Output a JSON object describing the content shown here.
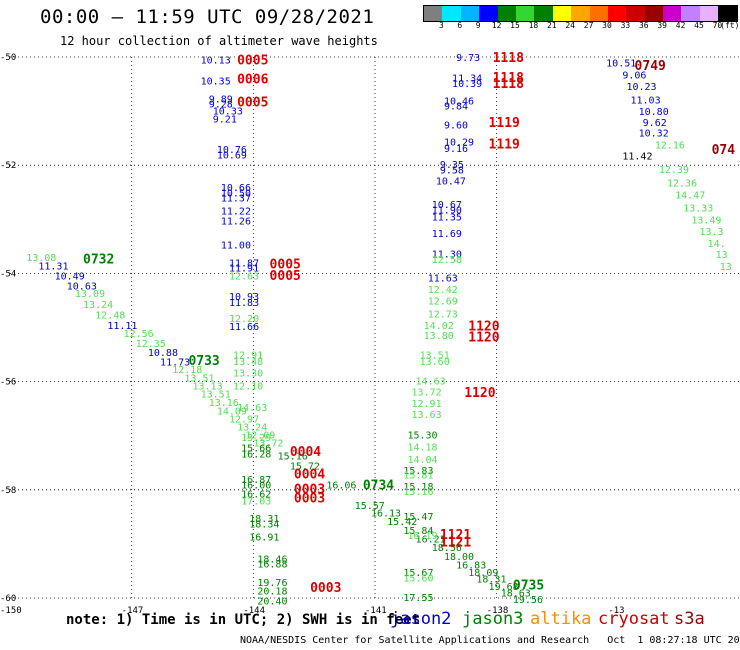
{
  "title": "00:00 – 11:59 UTC 09/28/2021",
  "subtitle": "12 hour collection of altimeter wave heights",
  "colorbar": {
    "colors": [
      "#7f7f7f",
      "#00e8ff",
      "#00b4ff",
      "#0000ff",
      "#008000",
      "#33d633",
      "#008000",
      "#ffff00",
      "#ffa500",
      "#ff6e00",
      "#ff0000",
      "#cc0000",
      "#990000",
      "#cc00cc",
      "#c080ff",
      "#e8b0ff",
      "#000000"
    ],
    "ticks": [
      "3",
      "6",
      "9",
      "12",
      "15",
      "18",
      "21",
      "24",
      "27",
      "30",
      "33",
      "36",
      "39",
      "42",
      "45",
      "70",
      "(ft)"
    ]
  },
  "map": {
    "lat_labels": [
      "-50",
      "-52",
      "-54",
      "-56",
      "-58",
      "-60"
    ],
    "lon_labels": [
      "-150",
      "-147",
      "-144",
      "-141",
      "-138",
      "-13"
    ]
  },
  "note": "note: 1) Time is in UTC; 2) SWH is in feet",
  "missions": [
    {
      "name": "jason2",
      "color": "#0000cc"
    },
    {
      "name": "jason3",
      "color": "#008000"
    },
    {
      "name": "altika",
      "color": "#ff8c00"
    },
    {
      "name": "cryosat",
      "color": "#cc0000"
    },
    {
      "name": "s3a",
      "color": "#990000"
    }
  ],
  "footer": "NOAA/NESDIS Center for Satellite Applications and Research   Oct  1 08:27:18 UTC 2021",
  "chart_data": {
    "type": "scatter",
    "x_axis": "longitude",
    "y_axis": "latitude",
    "xlim": [
      -150,
      -132
    ],
    "ylim": [
      -60.2,
      -49.9
    ],
    "time_labels": [
      {
        "text": "0732",
        "lon": -148.2,
        "lat": -53.72,
        "color": "#008000"
      },
      {
        "text": "0733",
        "lon": -145.6,
        "lat": -55.6,
        "color": "#008000"
      },
      {
        "text": "0734",
        "lon": -141.3,
        "lat": -57.9,
        "color": "#008000"
      },
      {
        "text": "0735",
        "lon": -137.6,
        "lat": -59.75,
        "color": "#008000"
      },
      {
        "text": "0005",
        "lon": -144.4,
        "lat": -50.05,
        "color": "#dd0000"
      },
      {
        "text": "0006",
        "lon": -144.4,
        "lat": -50.4,
        "color": "#dd0000"
      },
      {
        "text": "0005",
        "lon": -144.4,
        "lat": -50.82,
        "color": "#dd0000"
      },
      {
        "text": "0005",
        "lon": -143.6,
        "lat": -53.82,
        "color": "#dd0000"
      },
      {
        "text": "0005",
        "lon": -143.6,
        "lat": -54.03,
        "color": "#dd0000"
      },
      {
        "text": "0004",
        "lon": -143.1,
        "lat": -57.28,
        "color": "#dd0000"
      },
      {
        "text": "0004",
        "lon": -143.0,
        "lat": -57.7,
        "color": "#dd0000"
      },
      {
        "text": "0003",
        "lon": -143.0,
        "lat": -57.98,
        "color": "#dd0000"
      },
      {
        "text": "0003",
        "lon": -143.0,
        "lat": -58.14,
        "color": "#dd0000"
      },
      {
        "text": "0003",
        "lon": -142.6,
        "lat": -59.8,
        "color": "#dd0000"
      },
      {
        "text": "1118",
        "lon": -138.1,
        "lat": -50.0,
        "color": "#dd0000"
      },
      {
        "text": "1118",
        "lon": -138.1,
        "lat": -50.37,
        "color": "#dd0000"
      },
      {
        "text": "1118",
        "lon": -138.1,
        "lat": -50.48,
        "color": "#dd0000"
      },
      {
        "text": "1119",
        "lon": -138.2,
        "lat": -51.2,
        "color": "#dd0000"
      },
      {
        "text": "1119",
        "lon": -138.2,
        "lat": -51.6,
        "color": "#dd0000"
      },
      {
        "text": "1120",
        "lon": -138.7,
        "lat": -54.96,
        "color": "#dd0000"
      },
      {
        "text": "1120",
        "lon": -138.7,
        "lat": -55.17,
        "color": "#dd0000"
      },
      {
        "text": "1120",
        "lon": -138.8,
        "lat": -56.19,
        "color": "#dd0000"
      },
      {
        "text": "1121",
        "lon": -139.4,
        "lat": -58.82,
        "color": "#dd0000"
      },
      {
        "text": "1121",
        "lon": -139.4,
        "lat": -58.96,
        "color": "#dd0000"
      },
      {
        "text": "0749",
        "lon": -134.6,
        "lat": -50.15,
        "color": "#990000"
      },
      {
        "text": "074",
        "lon": -132.7,
        "lat": -51.7,
        "color": "#990000"
      }
    ],
    "values": [
      {
        "v": "13.08",
        "lon": -149.6,
        "lat": -53.7,
        "c": "#55dd55"
      },
      {
        "v": "11.31",
        "lon": -149.3,
        "lat": -53.85,
        "c": "#0000cc"
      },
      {
        "v": "10.49",
        "lon": -148.9,
        "lat": -54.04,
        "c": "#0000cc"
      },
      {
        "v": "10.63",
        "lon": -148.6,
        "lat": -54.22,
        "c": "#0000cc"
      },
      {
        "v": "13.09",
        "lon": -148.4,
        "lat": -54.36,
        "c": "#55dd55"
      },
      {
        "v": "13.24",
        "lon": -148.2,
        "lat": -54.57,
        "c": "#55dd55"
      },
      {
        "v": "12.48",
        "lon": -147.9,
        "lat": -54.76,
        "c": "#55dd55"
      },
      {
        "v": "11.11",
        "lon": -147.6,
        "lat": -54.95,
        "c": "#0000cc"
      },
      {
        "v": "12.56",
        "lon": -147.2,
        "lat": -55.1,
        "c": "#55dd55"
      },
      {
        "v": "12.35",
        "lon": -146.9,
        "lat": -55.29,
        "c": "#55dd55"
      },
      {
        "v": "10.88",
        "lon": -146.6,
        "lat": -55.45,
        "c": "#0000cc"
      },
      {
        "v": "11.73",
        "lon": -146.3,
        "lat": -55.63,
        "c": "#0000cc"
      },
      {
        "v": "12.18",
        "lon": -146.0,
        "lat": -55.77,
        "c": "#55dd55"
      },
      {
        "v": "13.51",
        "lon": -145.7,
        "lat": -55.92,
        "c": "#55dd55"
      },
      {
        "v": "13.13",
        "lon": -145.5,
        "lat": -56.07,
        "c": "#55dd55"
      },
      {
        "v": "13.51",
        "lon": -145.3,
        "lat": -56.22,
        "c": "#55dd55"
      },
      {
        "v": "13.16",
        "lon": -145.1,
        "lat": -56.38,
        "c": "#55dd55"
      },
      {
        "v": "14.09",
        "lon": -144.9,
        "lat": -56.53,
        "c": "#55dd55"
      },
      {
        "v": "12.97",
        "lon": -144.6,
        "lat": -56.68,
        "c": "#55dd55"
      },
      {
        "v": "13.24",
        "lon": -144.4,
        "lat": -56.83,
        "c": "#55dd55"
      },
      {
        "v": "12.09",
        "lon": -144.2,
        "lat": -56.98,
        "c": "#55dd55"
      },
      {
        "v": "13.72",
        "lon": -144.0,
        "lat": -57.13,
        "c": "#55dd55"
      },
      {
        "v": "15.16",
        "lon": -143.4,
        "lat": -57.37,
        "c": "#008000"
      },
      {
        "v": "15.72",
        "lon": -143.1,
        "lat": -57.55,
        "c": "#008000"
      },
      {
        "v": "16.06",
        "lon": -142.2,
        "lat": -57.9,
        "c": "#008000"
      },
      {
        "v": "15.57",
        "lon": -141.5,
        "lat": -58.28,
        "c": "#008000"
      },
      {
        "v": "16.13",
        "lon": -141.1,
        "lat": -58.42,
        "c": "#008000"
      },
      {
        "v": "15.42",
        "lon": -140.7,
        "lat": -58.58,
        "c": "#008000"
      },
      {
        "v": "15.84",
        "lon": -140.3,
        "lat": -58.74,
        "c": "#008000"
      },
      {
        "v": "16.21",
        "lon": -140.0,
        "lat": -58.9,
        "c": "#008000"
      },
      {
        "v": "18.56",
        "lon": -139.6,
        "lat": -59.06,
        "c": "#008000"
      },
      {
        "v": "18.00",
        "lon": -139.3,
        "lat": -59.22,
        "c": "#008000"
      },
      {
        "v": "16.83",
        "lon": -139.0,
        "lat": -59.38,
        "c": "#008000"
      },
      {
        "v": "18.09",
        "lon": -138.7,
        "lat": -59.52,
        "c": "#008000"
      },
      {
        "v": "18.31",
        "lon": -138.5,
        "lat": -59.64,
        "c": "#008000"
      },
      {
        "v": "19.68",
        "lon": -138.2,
        "lat": -59.78,
        "c": "#008000"
      },
      {
        "v": "18.63",
        "lon": -137.9,
        "lat": -59.9,
        "c": "#008000"
      },
      {
        "v": "19.56",
        "lon": -137.6,
        "lat": -60.02,
        "c": "#008000"
      },
      {
        "v": "10.13",
        "lon": -145.3,
        "lat": -50.05,
        "c": "#0000cc"
      },
      {
        "v": "10.35",
        "lon": -145.3,
        "lat": -50.43,
        "c": "#0000cc"
      },
      {
        "v": "9.89",
        "lon": -145.1,
        "lat": -50.77,
        "c": "#0000cc"
      },
      {
        "v": "9.28",
        "lon": -145.1,
        "lat": -50.86,
        "c": "#0000cc"
      },
      {
        "v": "10.33",
        "lon": -145.0,
        "lat": -50.99,
        "c": "#0000cc"
      },
      {
        "v": "9.21",
        "lon": -145.0,
        "lat": -51.14,
        "c": "#0000cc"
      },
      {
        "v": "10.76",
        "lon": -144.9,
        "lat": -51.7,
        "c": "#0000cc"
      },
      {
        "v": "10.69",
        "lon": -144.9,
        "lat": -51.8,
        "c": "#0000cc"
      },
      {
        "v": "10.66",
        "lon": -144.8,
        "lat": -52.4,
        "c": "#0000cc"
      },
      {
        "v": "10.50",
        "lon": -144.8,
        "lat": -52.5,
        "c": "#0000cc"
      },
      {
        "v": "11.37",
        "lon": -144.8,
        "lat": -52.6,
        "c": "#0000cc"
      },
      {
        "v": "11.22",
        "lon": -144.8,
        "lat": -52.84,
        "c": "#0000cc"
      },
      {
        "v": "11.26",
        "lon": -144.8,
        "lat": -53.02,
        "c": "#0000cc"
      },
      {
        "v": "11.00",
        "lon": -144.8,
        "lat": -53.47,
        "c": "#0000cc"
      },
      {
        "v": "11.87",
        "lon": -144.6,
        "lat": -53.8,
        "c": "#0000cc"
      },
      {
        "v": "11.91",
        "lon": -144.6,
        "lat": -53.89,
        "c": "#0000cc"
      },
      {
        "v": "12.63",
        "lon": -144.6,
        "lat": -54.04,
        "c": "#55dd55"
      },
      {
        "v": "10.93",
        "lon": -144.6,
        "lat": -54.42,
        "c": "#0000cc"
      },
      {
        "v": "11.83",
        "lon": -144.6,
        "lat": -54.53,
        "c": "#0000cc"
      },
      {
        "v": "12.20",
        "lon": -144.6,
        "lat": -54.82,
        "c": "#55dd55"
      },
      {
        "v": "11.66",
        "lon": -144.6,
        "lat": -54.97,
        "c": "#0000cc"
      },
      {
        "v": "12.91",
        "lon": -144.5,
        "lat": -55.5,
        "c": "#55dd55"
      },
      {
        "v": "13.48",
        "lon": -144.5,
        "lat": -55.62,
        "c": "#55dd55"
      },
      {
        "v": "13.30",
        "lon": -144.5,
        "lat": -55.83,
        "c": "#55dd55"
      },
      {
        "v": "12.10",
        "lon": -144.5,
        "lat": -56.07,
        "c": "#55dd55"
      },
      {
        "v": "14.63",
        "lon": -144.4,
        "lat": -56.47,
        "c": "#55dd55"
      },
      {
        "v": "13.29",
        "lon": -144.3,
        "lat": -57.02,
        "c": "#55dd55"
      },
      {
        "v": "15.66",
        "lon": -144.3,
        "lat": -57.22,
        "c": "#008000"
      },
      {
        "v": "16.28",
        "lon": -144.3,
        "lat": -57.33,
        "c": "#008000"
      },
      {
        "v": "16.87",
        "lon": -144.3,
        "lat": -57.8,
        "c": "#008000"
      },
      {
        "v": "16.00",
        "lon": -144.3,
        "lat": -57.9,
        "c": "#008000"
      },
      {
        "v": "16.62",
        "lon": -144.3,
        "lat": -58.07,
        "c": "#008000"
      },
      {
        "v": "17.03",
        "lon": -144.3,
        "lat": -58.2,
        "c": "#55dd55"
      },
      {
        "v": "18.31",
        "lon": -144.1,
        "lat": -58.52,
        "c": "#008000"
      },
      {
        "v": "18.34",
        "lon": -144.1,
        "lat": -58.62,
        "c": "#008000"
      },
      {
        "v": "16.91",
        "lon": -144.1,
        "lat": -58.86,
        "c": "#008000"
      },
      {
        "v": "18.46",
        "lon": -143.9,
        "lat": -59.27,
        "c": "#008000"
      },
      {
        "v": "16.88",
        "lon": -143.9,
        "lat": -59.36,
        "c": "#008000"
      },
      {
        "v": "19.76",
        "lon": -143.9,
        "lat": -59.7,
        "c": "#008000"
      },
      {
        "v": "20.18",
        "lon": -143.9,
        "lat": -59.86,
        "c": "#008000"
      },
      {
        "v": "20.40",
        "lon": -143.9,
        "lat": -60.05,
        "c": "#008000"
      },
      {
        "v": "9.73",
        "lon": -139.0,
        "lat": -50.0,
        "c": "#0000cc"
      },
      {
        "v": "11.34",
        "lon": -139.1,
        "lat": -50.38,
        "c": "#0000cc"
      },
      {
        "v": "10.39",
        "lon": -139.1,
        "lat": -50.48,
        "c": "#0000cc"
      },
      {
        "v": "10.46",
        "lon": -139.3,
        "lat": -50.8,
        "c": "#0000cc"
      },
      {
        "v": "9.84",
        "lon": -139.3,
        "lat": -50.9,
        "c": "#0000cc"
      },
      {
        "v": "9.60",
        "lon": -139.3,
        "lat": -51.25,
        "c": "#0000cc"
      },
      {
        "v": "10.29",
        "lon": -139.3,
        "lat": -51.56,
        "c": "#0000cc"
      },
      {
        "v": "9.16",
        "lon": -139.3,
        "lat": -51.68,
        "c": "#0000cc"
      },
      {
        "v": "9.35",
        "lon": -139.4,
        "lat": -51.98,
        "c": "#0000cc"
      },
      {
        "v": "9.58",
        "lon": -139.4,
        "lat": -52.08,
        "c": "#0000cc"
      },
      {
        "v": "10.47",
        "lon": -139.5,
        "lat": -52.28,
        "c": "#0000cc"
      },
      {
        "v": "10.67",
        "lon": -139.6,
        "lat": -52.72,
        "c": "#0000cc"
      },
      {
        "v": "11.90",
        "lon": -139.6,
        "lat": -52.82,
        "c": "#0000cc"
      },
      {
        "v": "11.35",
        "lon": -139.6,
        "lat": -52.95,
        "c": "#0000cc"
      },
      {
        "v": "11.69",
        "lon": -139.6,
        "lat": -53.25,
        "c": "#0000cc"
      },
      {
        "v": "11.30",
        "lon": -139.6,
        "lat": -53.63,
        "c": "#0000cc"
      },
      {
        "v": "12.58",
        "lon": -139.6,
        "lat": -53.73,
        "c": "#55dd55"
      },
      {
        "v": "11.63",
        "lon": -139.7,
        "lat": -54.08,
        "c": "#0000cc"
      },
      {
        "v": "12.42",
        "lon": -139.7,
        "lat": -54.29,
        "c": "#55dd55"
      },
      {
        "v": "12.69",
        "lon": -139.7,
        "lat": -54.5,
        "c": "#55dd55"
      },
      {
        "v": "12.73",
        "lon": -139.7,
        "lat": -54.74,
        "c": "#55dd55"
      },
      {
        "v": "14.02",
        "lon": -139.8,
        "lat": -54.95,
        "c": "#55dd55"
      },
      {
        "v": "13.80",
        "lon": -139.8,
        "lat": -55.14,
        "c": "#55dd55"
      },
      {
        "v": "13.51",
        "lon": -139.9,
        "lat": -55.5,
        "c": "#55dd55"
      },
      {
        "v": "13.60",
        "lon": -139.9,
        "lat": -55.62,
        "c": "#55dd55"
      },
      {
        "v": "14.63",
        "lon": -140.0,
        "lat": -55.98,
        "c": "#55dd55"
      },
      {
        "v": "13.72",
        "lon": -140.1,
        "lat": -56.18,
        "c": "#55dd55"
      },
      {
        "v": "12.91",
        "lon": -140.1,
        "lat": -56.4,
        "c": "#55dd55"
      },
      {
        "v": "13.63",
        "lon": -140.1,
        "lat": -56.6,
        "c": "#55dd55"
      },
      {
        "v": "15.30",
        "lon": -140.2,
        "lat": -56.98,
        "c": "#008000"
      },
      {
        "v": "14.18",
        "lon": -140.2,
        "lat": -57.2,
        "c": "#55dd55"
      },
      {
        "v": "14.04",
        "lon": -140.2,
        "lat": -57.43,
        "c": "#55dd55"
      },
      {
        "v": "15.83",
        "lon": -140.3,
        "lat": -57.63,
        "c": "#008000"
      },
      {
        "v": "15.81",
        "lon": -140.3,
        "lat": -57.72,
        "c": "#55dd55"
      },
      {
        "v": "15.18",
        "lon": -140.3,
        "lat": -57.93,
        "c": "#008000"
      },
      {
        "v": "15.16",
        "lon": -140.3,
        "lat": -58.02,
        "c": "#55dd55"
      },
      {
        "v": "15.47",
        "lon": -140.3,
        "lat": -58.48,
        "c": "#008000"
      },
      {
        "v": "16.19",
        "lon": -140.2,
        "lat": -58.84,
        "c": "#55dd55"
      },
      {
        "v": "15.67",
        "lon": -140.3,
        "lat": -59.52,
        "c": "#008000"
      },
      {
        "v": "15.60",
        "lon": -140.3,
        "lat": -59.62,
        "c": "#55dd55"
      },
      {
        "v": "17.55",
        "lon": -140.3,
        "lat": -59.98,
        "c": "#008000"
      },
      {
        "v": "10.51",
        "lon": -135.3,
        "lat": -50.1,
        "c": "#0000cc"
      },
      {
        "v": "9.06",
        "lon": -134.9,
        "lat": -50.32,
        "c": "#0000cc"
      },
      {
        "v": "10.23",
        "lon": -134.8,
        "lat": -50.54,
        "c": "#0000cc"
      },
      {
        "v": "11.03",
        "lon": -134.7,
        "lat": -50.79,
        "c": "#0000cc"
      },
      {
        "v": "10.80",
        "lon": -134.5,
        "lat": -51.0,
        "c": "#0000cc"
      },
      {
        "v": "9.62",
        "lon": -134.4,
        "lat": -51.2,
        "c": "#0000cc"
      },
      {
        "v": "10.32",
        "lon": -134.5,
        "lat": -51.4,
        "c": "#0000cc"
      },
      {
        "v": "12.16",
        "lon": -134.1,
        "lat": -51.62,
        "c": "#55dd55"
      },
      {
        "v": "11.42",
        "lon": -134.9,
        "lat": -51.82,
        "c": "#000000"
      },
      {
        "v": "12.39",
        "lon": -134.0,
        "lat": -52.07,
        "c": "#55dd55"
      },
      {
        "v": "12.36",
        "lon": -133.8,
        "lat": -52.32,
        "c": "#55dd55"
      },
      {
        "v": "14.47",
        "lon": -133.6,
        "lat": -52.54,
        "c": "#55dd55"
      },
      {
        "v": "13.33",
        "lon": -133.4,
        "lat": -52.78,
        "c": "#55dd55"
      },
      {
        "v": "13.49",
        "lon": -133.2,
        "lat": -53.0,
        "c": "#55dd55"
      },
      {
        "v": "13.3",
        "lon": -133.0,
        "lat": -53.22,
        "c": "#55dd55"
      },
      {
        "v": "14.",
        "lon": -132.8,
        "lat": -53.44,
        "c": "#55dd55"
      },
      {
        "v": "13",
        "lon": -132.6,
        "lat": -53.64,
        "c": "#55dd55"
      },
      {
        "v": "13",
        "lon": -132.5,
        "lat": -53.86,
        "c": "#55dd55"
      }
    ]
  }
}
